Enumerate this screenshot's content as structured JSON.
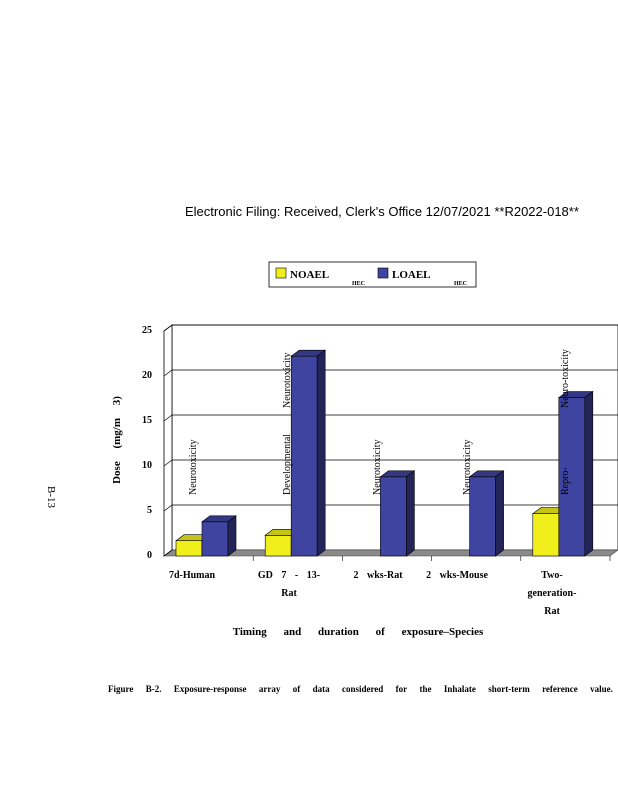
{
  "stamp": "Electronic Filing: Received, Clerk's Office 12/07/2021 **R2022-018**",
  "page_number": "B-13",
  "caption_words": [
    "Figure",
    "B-2.",
    "Exposure-response",
    "array",
    "of",
    "data",
    "considered",
    "for",
    "the",
    "Inhalate",
    "short-term",
    "reference",
    "value."
  ],
  "chart_data": {
    "type": "bar",
    "xlabel": "Timing and duration of exposure–Species",
    "ylabel": "Dose (mg/m 3)",
    "ylim": [
      0,
      25
    ],
    "y_ticks": [
      0,
      5,
      10,
      15,
      20,
      25
    ],
    "grid": true,
    "legend_placement": "top",
    "categories": [
      "7d-Human",
      "GD 7 - 13- Rat",
      "2 wks-Rat",
      "2 wks-Mouse",
      "Two- generation- Rat"
    ],
    "category_lines": [
      [
        "7d-Human"
      ],
      [
        "GD 7 - 13-",
        "Rat"
      ],
      [
        "2 wks-Rat"
      ],
      [
        "2 wks-Mouse"
      ],
      [
        "Two-",
        "generation-",
        "Rat"
      ]
    ],
    "series": [
      {
        "name": "NOAEL",
        "subscript": "HEC",
        "color": "#f0ef1c",
        "values": [
          1.7,
          2.3,
          null,
          null,
          4.7
        ]
      },
      {
        "name": "LOAEL",
        "subscript": "HEC",
        "color": "#3f44a0",
        "values": [
          3.8,
          22.2,
          8.8,
          8.8,
          17.6
        ]
      }
    ],
    "annotations": [
      {
        "category": 0,
        "lines": [
          "Neurotoxicity"
        ]
      },
      {
        "category": 1,
        "lines": [
          "Developmental",
          "Neurotoxicity"
        ]
      },
      {
        "category": 2,
        "lines": [
          "Neurotoxicity"
        ]
      },
      {
        "category": 3,
        "lines": [
          "Neurotoxicity"
        ]
      },
      {
        "category": 4,
        "lines": [
          "Repro-",
          "Neuro-toxicity"
        ]
      }
    ]
  }
}
